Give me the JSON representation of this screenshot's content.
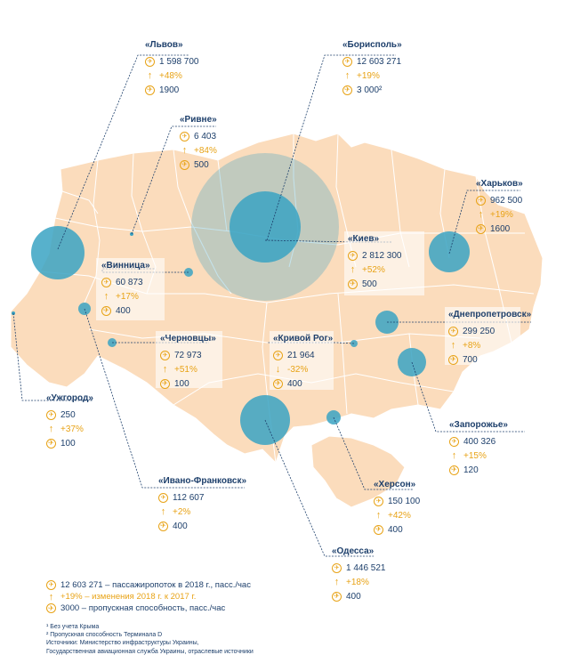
{
  "colors": {
    "land": "#fbdcbc",
    "border": "#ffffff",
    "circle": "#3aa3c3",
    "leader": "#1d3f6b",
    "accent": "#e8a317",
    "text": "#1d3f6b"
  },
  "icons": {
    "passengers": "passenger-icon",
    "change": "up-arrow-icon",
    "capacity": "capacity-icon"
  },
  "cities": [
    {
      "id": "lviv",
      "name": "«Львов»",
      "passengers": "1 598 700",
      "change": "+48%",
      "direction": "up",
      "capacity": "1900"
    },
    {
      "id": "boryspil",
      "name": "«Борисполь»",
      "passengers": "12 603 271",
      "change": "+19%",
      "direction": "up",
      "capacity": "3 000²"
    },
    {
      "id": "rivne",
      "name": "«Ривне»",
      "passengers": "6 403",
      "change": "+84%",
      "direction": "up",
      "capacity": "500"
    },
    {
      "id": "kharkiv",
      "name": "«Харьков»",
      "passengers": "962 500",
      "change": "+19%",
      "direction": "up",
      "capacity": "1600"
    },
    {
      "id": "kyiv",
      "name": "«Киев»",
      "passengers": "2 812 300",
      "change": "+52%",
      "direction": "up",
      "capacity": "500"
    },
    {
      "id": "vinnytsia",
      "name": "«Винница»",
      "passengers": "60 873",
      "change": "+17%",
      "direction": "up",
      "capacity": "400"
    },
    {
      "id": "dnipro",
      "name": "«Днепропетровск»",
      "passengers": "299 250",
      "change": "+8%",
      "direction": "up",
      "capacity": "700"
    },
    {
      "id": "chernivtsi",
      "name": "«Черновцы»",
      "passengers": "72 973",
      "change": "+51%",
      "direction": "up",
      "capacity": "100"
    },
    {
      "id": "kryvyi",
      "name": "«Кривой Рог»",
      "passengers": "21 964",
      "change": "-32%",
      "direction": "down",
      "capacity": "400"
    },
    {
      "id": "uzhhorod",
      "name": "«Ужгород»",
      "passengers": "250",
      "change": "+37%",
      "direction": "up",
      "capacity": "100"
    },
    {
      "id": "zaporizhia",
      "name": "«Запорожье»",
      "passengers": "400 326",
      "change": "+15%",
      "direction": "up",
      "capacity": "120"
    },
    {
      "id": "ivano",
      "name": "«Ивано-Франковск»",
      "passengers": "112 607",
      "change": "+2%",
      "direction": "up",
      "capacity": "400"
    },
    {
      "id": "kherson",
      "name": "«Херсон»",
      "passengers": "150 100",
      "change": "+42%",
      "direction": "up",
      "capacity": "400"
    },
    {
      "id": "odesa",
      "name": "«Одесса»",
      "passengers": "1 446 521",
      "change": "+18%",
      "direction": "up",
      "capacity": "400"
    }
  ],
  "legend": {
    "passengers": "12 603 271 – пассажиропоток в 2018 г., пасс./час",
    "change": "+19% – изменения 2018 г. к 2017 г.",
    "capacity": "3000 – пропускная способность, пасс./час"
  },
  "notes": {
    "note1": "¹ Без учета Крыма",
    "note2": "² Пропускная способность Терминала D",
    "sources1": "Источники: Министерство инфраструктуры Украины,",
    "sources2": "Государственная авиационная служба Украины, отраслевые источники"
  }
}
